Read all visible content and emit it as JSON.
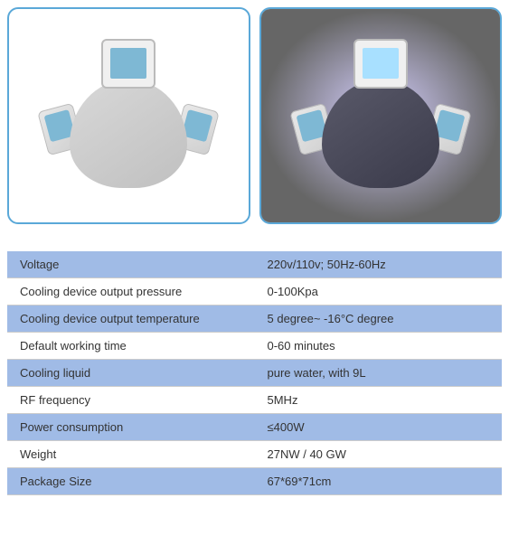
{
  "images": {
    "left_alt": "device-left-view",
    "right_alt": "device-right-view"
  },
  "specs": {
    "rows": [
      {
        "label": "Voltage",
        "value": "220v/110v; 50Hz-60Hz",
        "alt": true
      },
      {
        "label": "Cooling device output pressure",
        "value": "0-100Kpa",
        "alt": false
      },
      {
        "label": "Cooling device output temperature",
        "value": " 5 degree~ -16°C degree",
        "alt": true
      },
      {
        "label": "Default working time",
        "value": "0-60 minutes",
        "alt": false
      },
      {
        "label": "Cooling liquid",
        "value": " pure water, with 9L",
        "alt": true
      },
      {
        "label": "RF frequency",
        "value": " 5MHz",
        "alt": false
      },
      {
        "label": "Power consumption",
        "value": " ≤400W",
        "alt": true
      },
      {
        "label": "Weight",
        "value": "27NW / 40 GW",
        "alt": false
      },
      {
        "label": "Package Size",
        "value": " 67*69*71cm",
        "alt": true
      }
    ],
    "row_colors": {
      "alt": "#a0bbe6",
      "plain": "#ffffff"
    },
    "border_color": "#cccccc",
    "text_color": "#333333",
    "font_size": 13
  },
  "image_box": {
    "border_color": "#5aa8d8",
    "border_radius": 12
  }
}
